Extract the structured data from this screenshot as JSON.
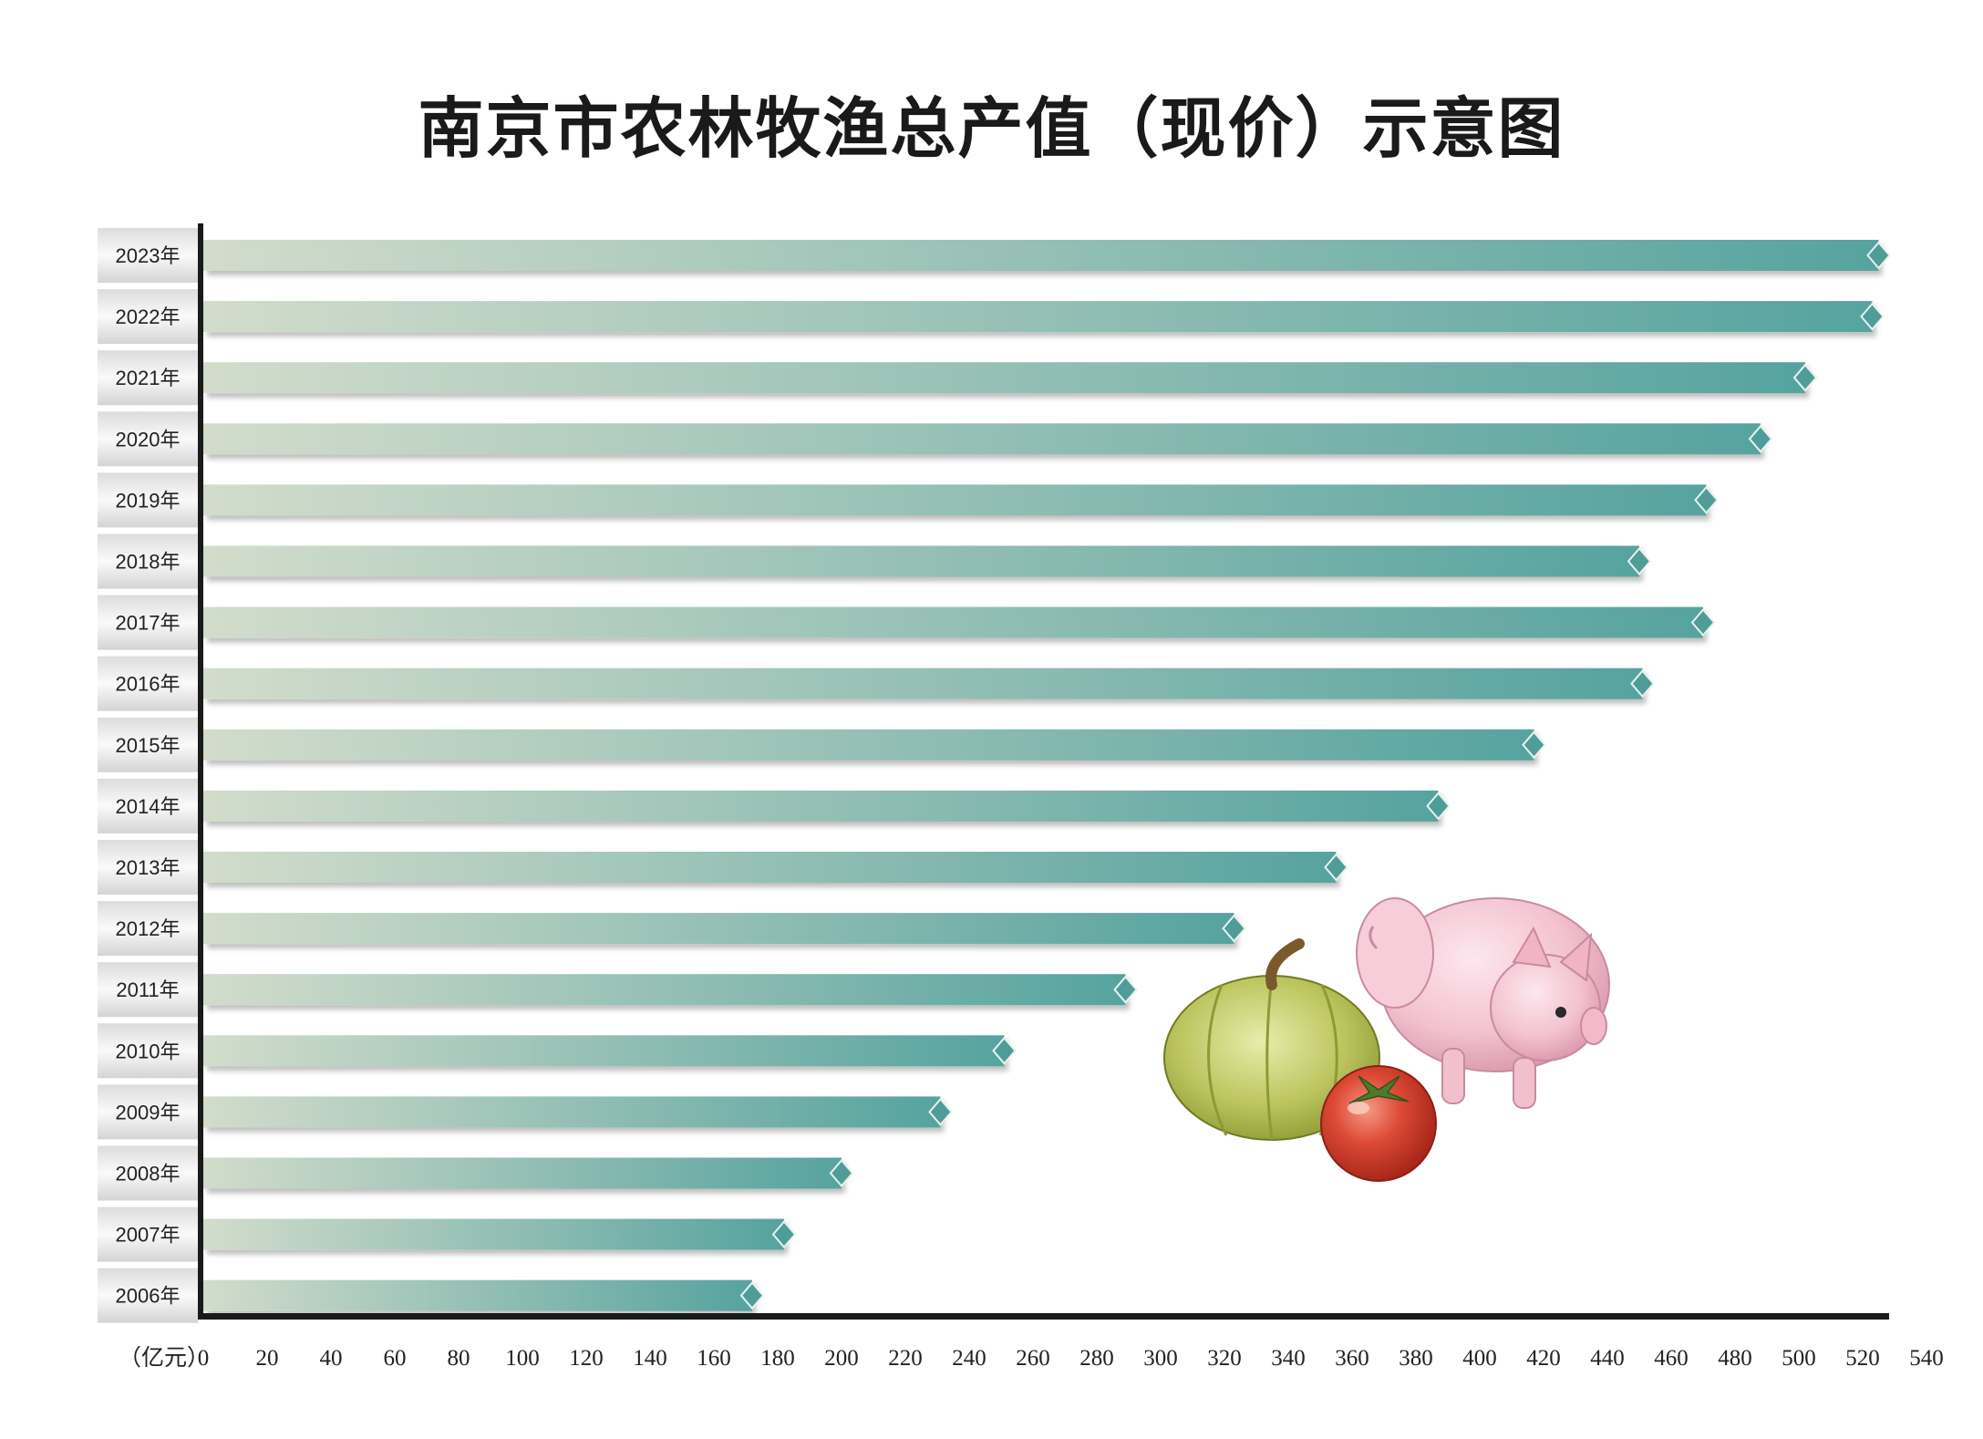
{
  "chart_data": {
    "type": "bar",
    "orientation": "horizontal",
    "title": "南京市农林牧渔总产值（现价）示意图",
    "unit_label": "（亿元）",
    "categories": [
      "2023年",
      "2022年",
      "2021年",
      "2020年",
      "2019年",
      "2018年",
      "2017年",
      "2016年",
      "2015年",
      "2014年",
      "2013年",
      "2012年",
      "2011年",
      "2010年",
      "2009年",
      "2008年",
      "2007年",
      "2006年"
    ],
    "values": [
      525,
      523,
      502,
      488,
      471,
      450,
      470,
      451,
      417,
      387,
      355,
      323,
      289,
      251,
      231,
      200,
      182,
      172
    ],
    "xticks": [
      0,
      20,
      40,
      60,
      80,
      100,
      120,
      140,
      160,
      180,
      200,
      220,
      240,
      260,
      280,
      300,
      320,
      340,
      360,
      380,
      400,
      420,
      440,
      460,
      480,
      500,
      520,
      540
    ],
    "xlim": [
      0,
      540
    ],
    "colors": {
      "bar_start": "#d2dccb",
      "bar_end": "#56a39f",
      "cap": "#4f9c98"
    },
    "grid": false,
    "legend": "none"
  }
}
